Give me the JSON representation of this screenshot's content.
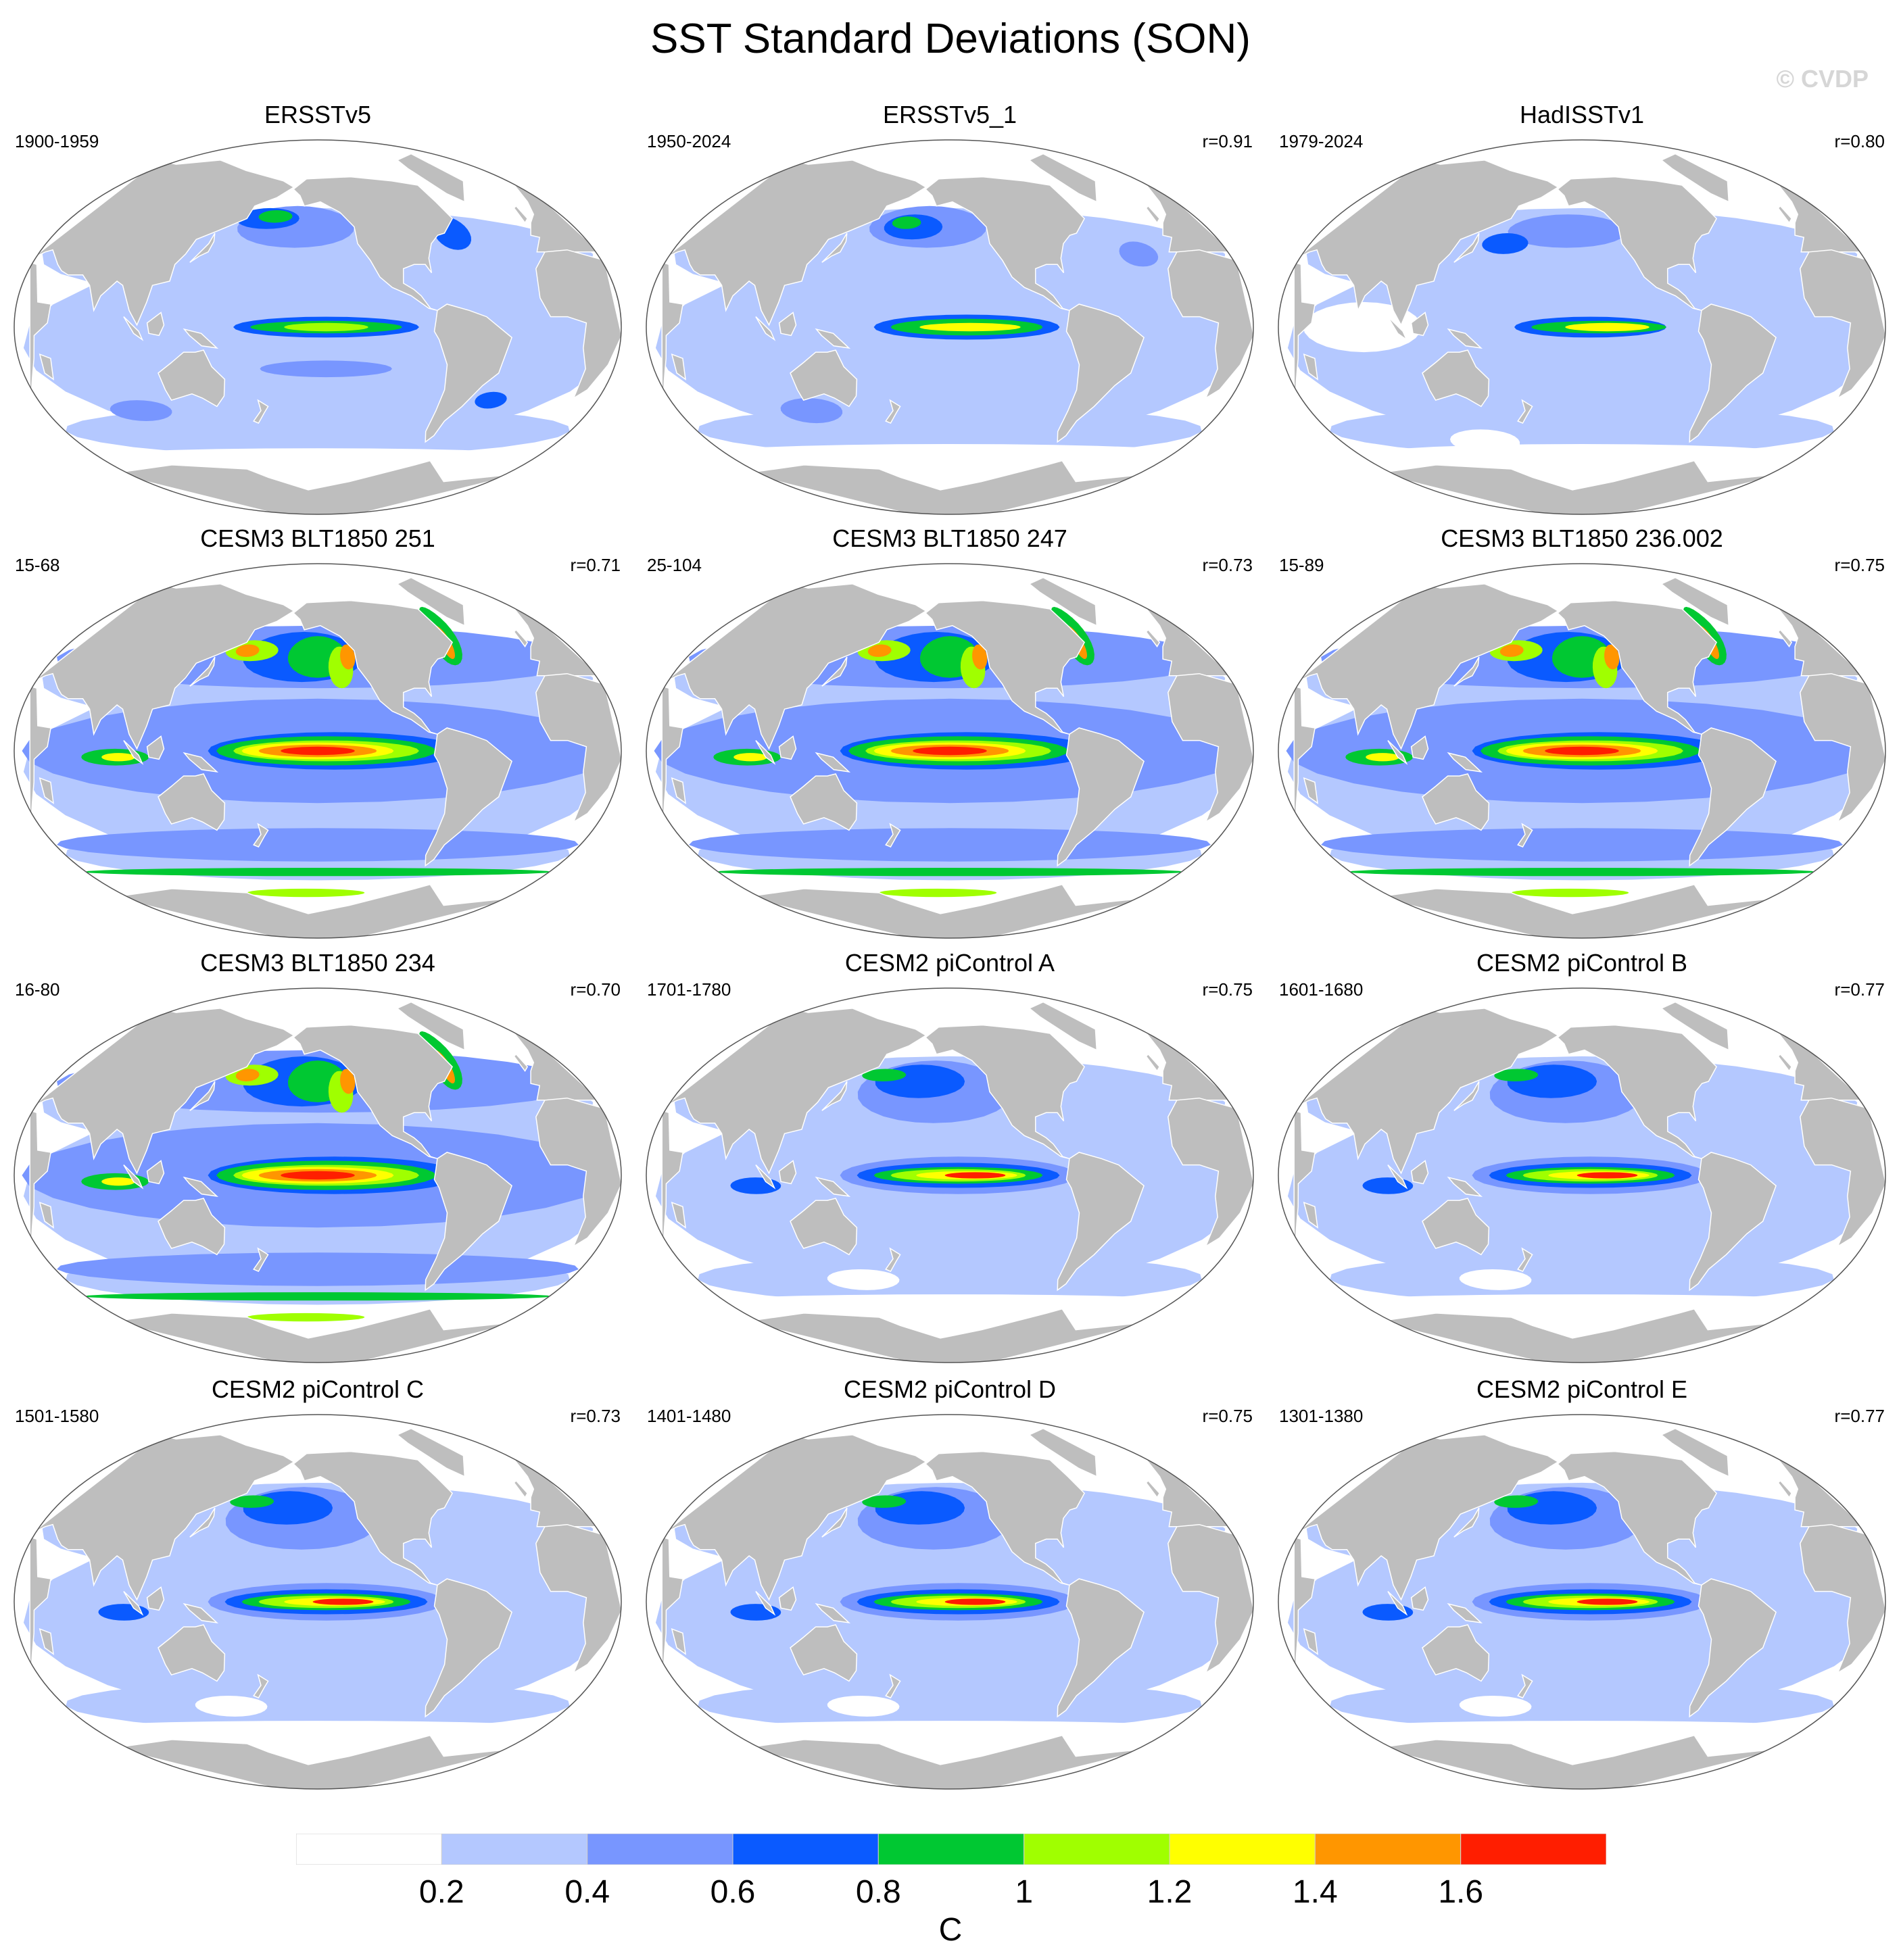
{
  "title": "SST Standard Deviations (SON)",
  "credit": "© CVDP",
  "panels": [
    {
      "title": "ERSSTv5",
      "period": "1900-1959",
      "corr": "",
      "style": "obs1"
    },
    {
      "title": "ERSSTv5_1",
      "period": "1950-2024",
      "corr": "r=0.91",
      "style": "obs2"
    },
    {
      "title": "HadISSTv1",
      "period": "1979-2024",
      "corr": "r=0.80",
      "style": "obs3"
    },
    {
      "title": "CESM3 BLT1850 251",
      "period": "15-68",
      "corr": "r=0.71",
      "style": "cesm3"
    },
    {
      "title": "CESM3 BLT1850 247",
      "period": "25-104",
      "corr": "r=0.73",
      "style": "cesm3"
    },
    {
      "title": "CESM3 BLT1850 236.002",
      "period": "15-89",
      "corr": "r=0.75",
      "style": "cesm3"
    },
    {
      "title": "CESM3 BLT1850 234",
      "period": "16-80",
      "corr": "r=0.70",
      "style": "cesm3"
    },
    {
      "title": "CESM2 piControl A",
      "period": "1701-1780",
      "corr": "r=0.75",
      "style": "cesm2"
    },
    {
      "title": "CESM2 piControl B",
      "period": "1601-1680",
      "corr": "r=0.77",
      "style": "cesm2"
    },
    {
      "title": "CESM2 piControl C",
      "period": "1501-1580",
      "corr": "r=0.73",
      "style": "cesm2"
    },
    {
      "title": "CESM2 piControl D",
      "period": "1401-1480",
      "corr": "r=0.75",
      "style": "cesm2"
    },
    {
      "title": "CESM2 piControl E",
      "period": "1301-1380",
      "corr": "r=0.77",
      "style": "cesm2"
    }
  ],
  "colorbar": {
    "unit": "C",
    "ticks": [
      "0.2",
      "0.4",
      "0.6",
      "0.8",
      "1",
      "1.2",
      "1.4",
      "1.6"
    ],
    "colors": [
      "#ffffff",
      "#b4c8ff",
      "#7896ff",
      "#0a5aff",
      "#00c832",
      "#a0ff00",
      "#ffff00",
      "#ff9600",
      "#ff1e00"
    ]
  }
}
